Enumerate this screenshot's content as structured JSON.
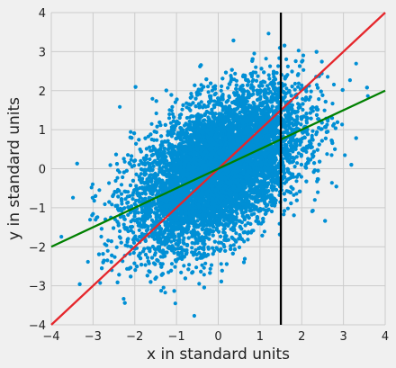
{
  "chart_data": {
    "type": "scatter",
    "title": "",
    "xlabel": "x in standard units",
    "ylabel": "y in standard units",
    "xlim": [
      -4,
      4
    ],
    "ylim": [
      -4,
      4
    ],
    "xticks": [
      "−4",
      "−3",
      "−2",
      "−1",
      "0",
      "1",
      "2",
      "3",
      "4"
    ],
    "yticks": [
      "−4",
      "−3",
      "−2",
      "−1",
      "0",
      "1",
      "2",
      "3",
      "4"
    ],
    "grid": true,
    "scatter": {
      "color": "#008fd5",
      "approx_points": 10000,
      "correlation": 0.5
    },
    "lines": [
      {
        "name": "",
        "slope": 1.0,
        "intercept": 0.0,
        "color": "#e5262b"
      },
      {
        "name": "",
        "slope": 0.5,
        "intercept": 0.0,
        "color": "#008000"
      }
    ],
    "vlines": [
      {
        "x": 1.5,
        "color": "#000000"
      }
    ]
  }
}
